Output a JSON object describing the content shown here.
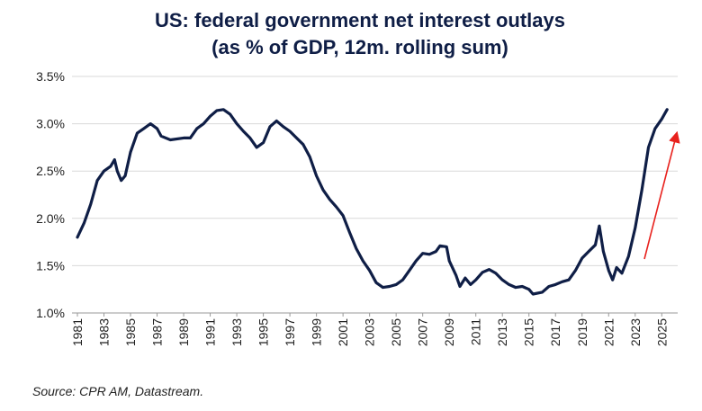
{
  "chart_data": {
    "type": "line",
    "title": "US: federal government net interest outlays",
    "subtitle": "(as % of GDP, 12m. rolling sum)",
    "source": "Source: CPR AM, Datastream.",
    "color": "#0f1e46",
    "grid": true,
    "x": [
      1981.0,
      1981.5,
      1982.0,
      1982.5,
      1983.0,
      1983.5,
      1983.8,
      1984.0,
      1984.3,
      1984.6,
      1985.0,
      1985.5,
      1986.0,
      1986.5,
      1987.0,
      1987.3,
      1988.0,
      1989.0,
      1989.5,
      1990.0,
      1990.5,
      1991.0,
      1991.5,
      1992.0,
      1992.5,
      1993.0,
      1993.5,
      1994.0,
      1994.5,
      1995.0,
      1995.5,
      1996.0,
      1996.5,
      1997.0,
      1997.5,
      1998.0,
      1998.5,
      1999.0,
      1999.5,
      2000.0,
      2000.5,
      2001.0,
      2001.5,
      2002.0,
      2002.5,
      2003.0,
      2003.5,
      2004.0,
      2004.5,
      2005.0,
      2005.5,
      2006.0,
      2006.5,
      2007.0,
      2007.5,
      2008.0,
      2008.3,
      2008.8,
      2009.0,
      2009.5,
      2009.8,
      2010.2,
      2010.6,
      2011.0,
      2011.5,
      2012.0,
      2012.5,
      2013.0,
      2013.5,
      2014.0,
      2014.5,
      2015.0,
      2015.3,
      2016.0,
      2016.5,
      2017.0,
      2017.5,
      2018.0,
      2018.5,
      2019.0,
      2019.5,
      2020.0,
      2020.3,
      2020.6,
      2021.0,
      2021.3,
      2021.6,
      2022.0,
      2022.5,
      2023.0,
      2023.5,
      2024.0,
      2024.5,
      2025.0,
      2025.4
    ],
    "values": [
      1.8,
      1.95,
      2.15,
      2.4,
      2.5,
      2.55,
      2.62,
      2.5,
      2.4,
      2.45,
      2.7,
      2.9,
      2.95,
      3.0,
      2.95,
      2.87,
      2.83,
      2.85,
      2.85,
      2.95,
      3.0,
      3.08,
      3.14,
      3.15,
      3.1,
      3.0,
      2.92,
      2.85,
      2.75,
      2.8,
      2.97,
      3.03,
      2.97,
      2.92,
      2.85,
      2.78,
      2.65,
      2.45,
      2.3,
      2.2,
      2.12,
      2.03,
      1.85,
      1.68,
      1.55,
      1.45,
      1.32,
      1.27,
      1.28,
      1.3,
      1.35,
      1.45,
      1.55,
      1.63,
      1.62,
      1.65,
      1.71,
      1.7,
      1.55,
      1.4,
      1.28,
      1.37,
      1.3,
      1.35,
      1.43,
      1.46,
      1.42,
      1.35,
      1.3,
      1.27,
      1.28,
      1.25,
      1.2,
      1.22,
      1.28,
      1.3,
      1.33,
      1.35,
      1.45,
      1.58,
      1.65,
      1.72,
      1.92,
      1.65,
      1.45,
      1.35,
      1.48,
      1.42,
      1.6,
      1.9,
      2.3,
      2.75,
      2.95,
      3.05,
      3.15
    ],
    "xlim": [
      1981,
      2026.2
    ],
    "xticks": [
      1981,
      1983,
      1985,
      1987,
      1989,
      1991,
      1993,
      1995,
      1997,
      1999,
      2001,
      2003,
      2005,
      2007,
      2009,
      2011,
      2013,
      2015,
      2017,
      2019,
      2021,
      2023,
      2025
    ],
    "ylim": [
      1.0,
      3.5
    ],
    "yticks": [
      {
        "value": 1.0,
        "label": "1.0%"
      },
      {
        "value": 1.5,
        "label": "1.5%"
      },
      {
        "value": 2.0,
        "label": "2.0%"
      },
      {
        "value": 2.5,
        "label": "2.5%"
      },
      {
        "value": 3.0,
        "label": "3.0%"
      },
      {
        "value": 3.5,
        "label": "3.5%"
      }
    ]
  }
}
